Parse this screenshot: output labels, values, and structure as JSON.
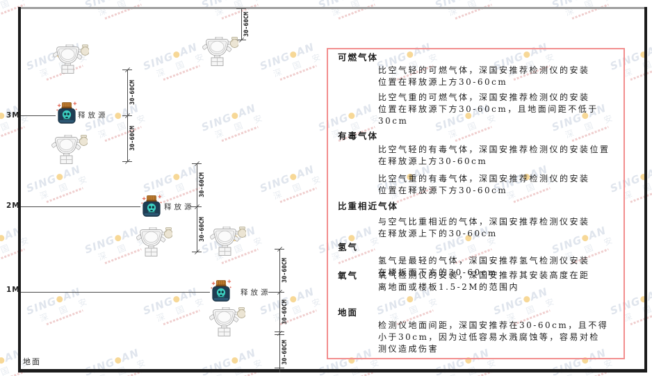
{
  "watermark": {
    "brand_left": "SING",
    "brand_right": "AN",
    "brand_cn": "深 国 安"
  },
  "diagram": {
    "height_labels": [
      "3M",
      "2M",
      "1M"
    ],
    "ground_label": "地面",
    "release_source_label": "释放源",
    "dimension_label": "30-60CM",
    "colors": {
      "panel_border": "#f28d8d",
      "source_body": "#1f3d53",
      "source_lid": "#c47f31",
      "source_skull": "#3bcfc0",
      "sparkle": "#e2604e",
      "watermark": "#c7d1df",
      "watermark_dot": "#f0b12e"
    }
  },
  "panel": {
    "sections": [
      {
        "title": "可燃气体",
        "paragraphs": [
          {
            "lines": [
              "比空气轻的可燃气体，深国安推荐检测仪的安装",
              "位置在释放源上方30-60cm"
            ]
          },
          {
            "lines": [
              "比空气重的可燃气体，深国安推荐检测仪的安装",
              "位置在释放源下方30-60cm，且地面间距不低于",
              "30cm"
            ]
          }
        ]
      },
      {
        "title": "有毒气体",
        "paragraphs": [
          {
            "lines": [
              "比空气轻的有毒气体，深国安推荐检测仪的安装位置",
              "在释放源上方30-60cm"
            ]
          },
          {
            "lines": [
              "比空气重的有毒气体，深国安推荐检测仪的安装",
              "位置在释放源下方30-60cm"
            ]
          }
        ]
      },
      {
        "title": "比重相近气体",
        "paragraphs": [
          {
            "lines": [
              "与空气比重相近的气体，深国安推荐检测仪安装",
              "在释放源上下的30-60cm"
            ]
          }
        ]
      },
      {
        "title": "氢气",
        "paragraphs": [
          {
            "lines": [
              "氢气是最轻的气体，深国安推荐氢气检测仪安装",
              "在楼板面下方的30-60cm"
            ]
          }
        ]
      },
      {
        "title": "氧气",
        "paragraphs": [
          {
            "lines": [
              "氧气检测仪的安装，深国安推荐其安装高度在距",
              "离地面或楼板1.5-2M的范围内"
            ]
          }
        ]
      },
      {
        "title": "地面",
        "paragraphs": [
          {
            "lines": [
              "检测仪地面间距，深国安推荐在30-60cm，且不得",
              "小于30cm，因为过低容易水溅腐蚀等，容易对检",
              "测仪造成伤害"
            ]
          }
        ]
      }
    ]
  }
}
